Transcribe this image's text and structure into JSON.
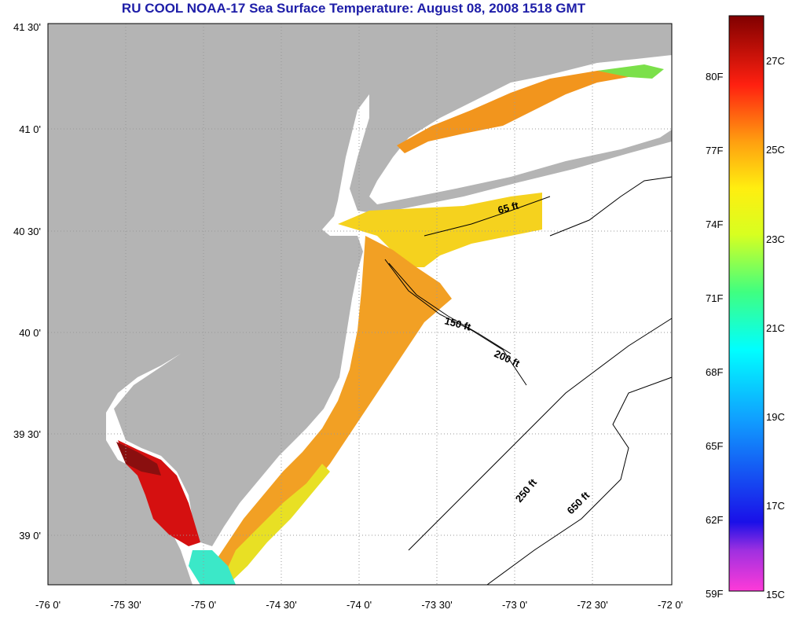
{
  "title": "RU COOL  NOAA-17  Sea Surface Temperature:  August 08, 2008 1518 GMT",
  "map": {
    "lat_labels": [
      "41 30'",
      "41 0'",
      "40 30'",
      "40 0'",
      "39 30'",
      "39 0'"
    ],
    "lon_labels": [
      "-76 0'",
      "-75 30'",
      "-75 0'",
      "-74 30'",
      "-74 0'",
      "-73 30'",
      "-73 0'",
      "-72 30'",
      "-72 0'"
    ],
    "isobath_labels": [
      "65 ft",
      "150 ft",
      "200 ft",
      "250 ft",
      "650 ft"
    ],
    "colors": {
      "land": "#b4b4b4",
      "ocean_no_data": "#ffffff",
      "grid": "#999999",
      "title": "#1e1ea8"
    }
  },
  "colorbar": {
    "fahrenheit_labels": [
      "80F",
      "77F",
      "74F",
      "71F",
      "68F",
      "65F",
      "62F",
      "59F"
    ],
    "celsius_labels": [
      "27C",
      "25C",
      "23C",
      "21C",
      "19C",
      "17C",
      "15C"
    ]
  }
}
